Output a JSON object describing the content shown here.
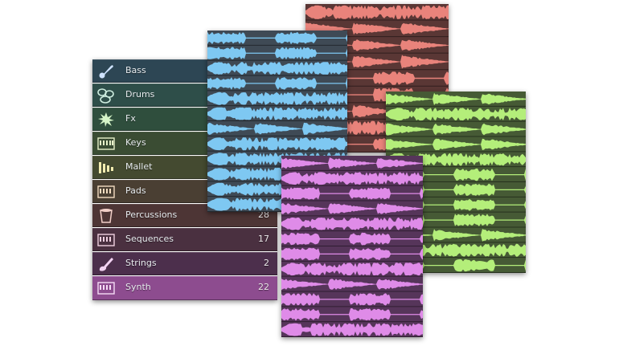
{
  "library": {
    "items": [
      {
        "label": "Bass",
        "count": "",
        "icon": "bass-guitar-icon",
        "color": "#2d4654"
      },
      {
        "label": "Drums",
        "count": "",
        "icon": "drums-icon",
        "color": "#2e4e49"
      },
      {
        "label": "Fx",
        "count": "",
        "icon": "fx-burst-icon",
        "color": "#2f4e3d"
      },
      {
        "label": "Keys",
        "count": "",
        "icon": "keyboard-icon",
        "color": "#3a4c33"
      },
      {
        "label": "Mallet",
        "count": "",
        "icon": "xylophone-icon",
        "color": "#444a30"
      },
      {
        "label": "Pads",
        "count": "",
        "icon": "keyboard-icon",
        "color": "#4a3f33"
      },
      {
        "label": "Percussions",
        "count": "28",
        "icon": "hand-drum-icon",
        "color": "#4d3535"
      },
      {
        "label": "Sequences",
        "count": "17",
        "icon": "keyboard-icon",
        "color": "#4a3040"
      },
      {
        "label": "Strings",
        "count": "2",
        "icon": "violin-icon",
        "color": "#4c2f4c"
      },
      {
        "label": "Synth",
        "count": "22",
        "icon": "keyboard-icon",
        "color": "#8d4c8f"
      }
    ]
  },
  "cards": [
    {
      "name": "blue-waveform-card",
      "color": "#7ec8f2",
      "bg": "#3f4a55",
      "rows": 12
    },
    {
      "name": "red-waveform-card",
      "color": "#e9837b",
      "bg": "#5a3735",
      "rows": 9
    },
    {
      "name": "green-waveform-card",
      "color": "#b4ee7a",
      "bg": "#465a35",
      "rows": 12
    },
    {
      "name": "purple-waveform-card",
      "color": "#df8be8",
      "bg": "#56355a",
      "rows": 12
    }
  ]
}
